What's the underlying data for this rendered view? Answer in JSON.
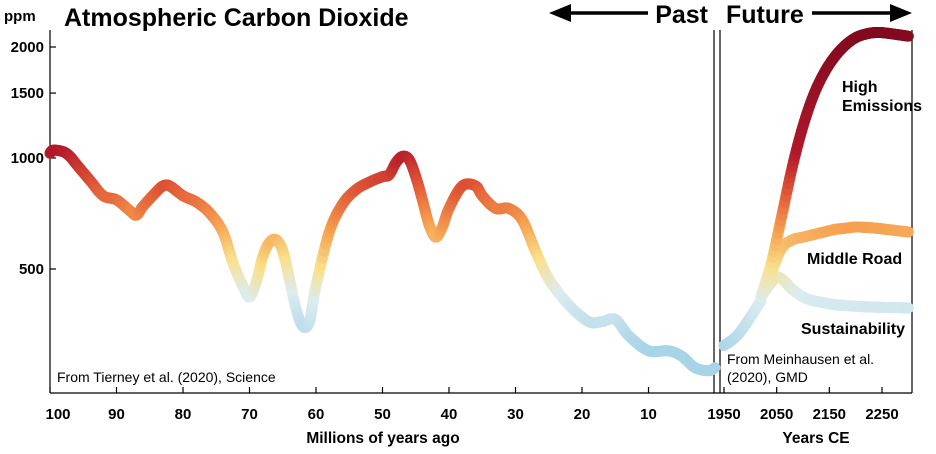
{
  "chart_data": {
    "type": "line",
    "title": "Atmospheric Carbon Dioxide",
    "unit_label": "ppm",
    "y_scale": "log",
    "ylim": [
      250,
      2300
    ],
    "y_ticks": [
      500,
      1000,
      1500,
      2000
    ],
    "y_tick_labels": [
      "500",
      "1000",
      "1500",
      "2000"
    ],
    "direction_labels": {
      "past": "Past",
      "future": "Future"
    },
    "colormap_note": "color encodes CO2 level: light blue low, yellow mid, red high",
    "panels": {
      "past": {
        "xlabel": "Millions of years ago",
        "xlim": [
          100,
          0
        ],
        "x_ticks": [
          100,
          90,
          80,
          70,
          60,
          50,
          40,
          30,
          20,
          10
        ],
        "x_tick_labels": [
          "100",
          "90",
          "80",
          "70",
          "60",
          "50",
          "40",
          "30",
          "20",
          "10"
        ],
        "source": "From Tierney et al. (2020), Science",
        "series": [
          {
            "x": [
              100,
              99.5,
              98,
              97,
              96,
              94,
              92,
              90,
              88,
              87,
              86,
              84,
              83,
              82,
              80,
              78,
              76,
              74,
              72.5,
              71,
              70,
              69,
              68,
              67,
              66,
              65,
              64,
              63,
              62,
              61,
              60,
              58,
              56,
              54,
              52,
              50,
              49,
              48,
              47,
              46,
              45,
              44,
              43,
              42,
              41,
              40,
              38,
              36,
              35,
              33,
              31,
              29,
              27,
              25,
              22,
              19,
              17,
              15,
              13,
              10,
              7,
              5,
              3,
              1,
              0
            ],
            "y": [
              1030,
              1050,
              1040,
              1010,
              960,
              870,
              790,
              770,
              720,
              700,
              740,
              810,
              840,
              840,
              790,
              760,
              710,
              630,
              520,
              450,
              420,
              460,
              540,
              590,
              600,
              560,
              470,
              390,
              350,
              360,
              450,
              630,
              750,
              820,
              860,
              890,
              900,
              970,
              1010,
              990,
              890,
              770,
              660,
              610,
              650,
              730,
              840,
              840,
              790,
              730,
              730,
              680,
              560,
              470,
              400,
              360,
              360,
              365,
              330,
              300,
              300,
              290,
              270,
              265,
              270
            ]
          }
        ]
      },
      "future": {
        "xlabel": "Years CE",
        "xlim": [
          1950,
          2300
        ],
        "x_ticks": [
          1950,
          2050,
          2150,
          2250
        ],
        "x_tick_labels": [
          "1950",
          "2050",
          "2150",
          "2250"
        ],
        "source_lines": [
          "From Meinhausen et al.",
          "(2020), GMD"
        ],
        "historical": {
          "x": [
            1950,
            1975,
            2000,
            2020
          ],
          "y": [
            310,
            330,
            370,
            410
          ]
        },
        "series": [
          {
            "name": "High Emissions",
            "x": [
              2020,
              2040,
              2060,
              2080,
              2100,
              2120,
              2140,
              2160,
              2180,
              2200,
              2220,
              2240,
              2260,
              2280,
              2300
            ],
            "y": [
              420,
              520,
              700,
              950,
              1220,
              1480,
              1700,
              1880,
              2020,
              2120,
              2170,
              2190,
              2180,
              2160,
              2140
            ]
          },
          {
            "name": "Middle Road",
            "x": [
              2020,
              2040,
              2060,
              2080,
              2100,
              2120,
              2140,
              2160,
              2180,
              2200,
              2220,
              2240,
              2260,
              2280,
              2300
            ],
            "y": [
              420,
              490,
              570,
              600,
              610,
              620,
              630,
              640,
              645,
              650,
              648,
              645,
              640,
              635,
              630
            ]
          },
          {
            "name": "Sustainability",
            "x": [
              2020,
              2040,
              2050,
              2060,
              2070,
              2080,
              2100,
              2120,
              2140,
              2160,
              2180,
              2200,
              2220,
              2240,
              2260,
              2280,
              2300
            ],
            "y": [
              420,
              460,
              475,
              470,
              455,
              440,
              420,
              410,
              405,
              400,
              398,
              396,
              395,
              394,
              393,
              393,
              392
            ]
          }
        ]
      }
    }
  }
}
